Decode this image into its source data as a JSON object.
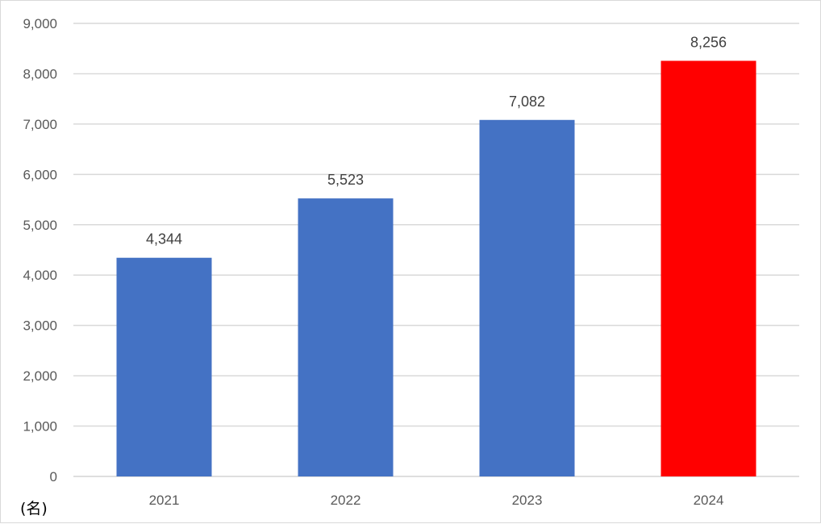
{
  "chart_data": {
    "type": "bar",
    "categories": [
      "2021",
      "2022",
      "2023",
      "2024"
    ],
    "values": [
      4344,
      5523,
      7082,
      8256
    ],
    "value_labels": [
      "4,344",
      "5,523",
      "7,082",
      "8,256"
    ],
    "ylim": [
      0,
      9000
    ],
    "y_ticks": [
      0,
      1000,
      2000,
      3000,
      4000,
      5000,
      6000,
      7000,
      8000,
      9000
    ],
    "y_tick_labels": [
      "0",
      "1,000",
      "2,000",
      "3,000",
      "4,000",
      "5,000",
      "6,000",
      "7,000",
      "8,000",
      "9,000"
    ],
    "unit_label": "(名)",
    "grid": true,
    "legend": "none",
    "colors": {
      "bar": "#4472c4",
      "highlight_bar": "#ff0000",
      "gridline": "#d9d9d9"
    },
    "highlight_category": "2024"
  }
}
